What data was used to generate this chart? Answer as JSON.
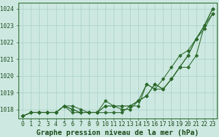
{
  "x": [
    0,
    1,
    2,
    3,
    4,
    5,
    6,
    7,
    8,
    9,
    10,
    11,
    12,
    13,
    14,
    15,
    16,
    17,
    18,
    19,
    20,
    21,
    22,
    23
  ],
  "series": [
    [
      1017.6,
      1017.8,
      1017.8,
      1017.8,
      1017.8,
      1018.2,
      1018.2,
      1018.0,
      1017.8,
      1017.8,
      1018.2,
      1018.2,
      1018.2,
      1018.2,
      1018.5,
      1018.8,
      1019.5,
      1019.2,
      1019.8,
      1020.5,
      1021.2,
      1022.2,
      1023.0,
      1023.7
    ],
    [
      1017.6,
      1017.8,
      1017.8,
      1017.8,
      1017.8,
      1018.2,
      1018.0,
      1017.8,
      1017.8,
      1017.8,
      1018.2,
      1018.2,
      1018.0,
      1018.0,
      1018.5,
      1018.8,
      1019.5,
      1019.2,
      1019.8,
      1020.5,
      1021.2,
      1022.2,
      1022.8,
      1023.7
    ],
    [
      1017.6,
      1017.8,
      1017.8,
      1017.8,
      1017.8,
      1018.2,
      1018.0,
      1017.8,
      1017.8,
      1017.8,
      1018.5,
      1018.2,
      1018.2,
      1018.2,
      1018.2,
      1019.5,
      1019.2,
      1019.8,
      1020.5,
      1021.2,
      1021.5,
      1022.2,
      1023.0,
      1024.0
    ],
    [
      1017.6,
      1017.8,
      1017.8,
      1017.8,
      1017.8,
      1018.2,
      1017.8,
      1017.8,
      1017.8,
      1017.8,
      1017.8,
      1017.8,
      1017.8,
      1018.2,
      1018.5,
      1019.5,
      1019.2,
      1019.2,
      1019.8,
      1020.5,
      1020.5,
      1021.2,
      1023.0,
      1024.0
    ]
  ],
  "line_color": "#2d6a2d",
  "marker": "D",
  "markersize": 2.5,
  "linewidth": 0.8,
  "ylim": [
    1017.45,
    1024.35
  ],
  "yticks": [
    1018,
    1019,
    1020,
    1021,
    1022,
    1023,
    1024
  ],
  "xlim": [
    -0.5,
    23.5
  ],
  "xlabel": "Graphe pression niveau de la mer (hPa)",
  "bg_color": "#cce8e0",
  "grid_color": "#a8cfc8",
  "axis_color": "#2d6a2d",
  "tick_color": "#1a4a1a",
  "xlabel_color": "#1a4a1a",
  "tick_fontsize": 6,
  "xlabel_fontsize": 7.5
}
